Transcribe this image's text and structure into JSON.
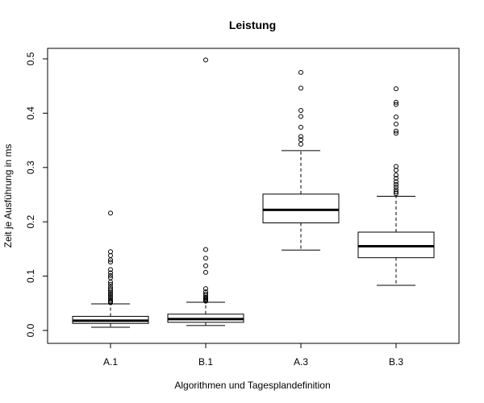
{
  "chart_data": {
    "type": "boxplot",
    "title": "Leistung",
    "xlabel": "Algorithmen und Tagesplandefinition",
    "ylabel": "Zeit je Ausführung in ms",
    "ylim": [
      -0.022,
      0.522
    ],
    "yticks": [
      "0.0",
      "0.1",
      "0.2",
      "0.3",
      "0.4",
      "0.5"
    ],
    "grid": false,
    "categories": [
      "A.1",
      "B.1",
      "A.3",
      "B.3"
    ],
    "boxes": [
      {
        "name": "A.1",
        "whisker_low": 0.006,
        "q1": 0.013,
        "median": 0.018,
        "q3": 0.026,
        "whisker_high": 0.049,
        "outliers": [
          0.216,
          0.145,
          0.138,
          0.13,
          0.126,
          0.112,
          0.106,
          0.101,
          0.097,
          0.089,
          0.085,
          0.08,
          0.076,
          0.073,
          0.07,
          0.067,
          0.064,
          0.061,
          0.058,
          0.055,
          0.053,
          0.051
        ]
      },
      {
        "name": "B.1",
        "whisker_low": 0.009,
        "q1": 0.015,
        "median": 0.021,
        "q3": 0.03,
        "whisker_high": 0.052,
        "outliers": [
          0.498,
          0.149,
          0.133,
          0.119,
          0.107,
          0.077,
          0.071,
          0.067,
          0.064,
          0.061,
          0.059,
          0.057,
          0.055,
          0.054
        ]
      },
      {
        "name": "A.3",
        "whisker_low": 0.148,
        "q1": 0.198,
        "median": 0.222,
        "q3": 0.251,
        "whisker_high": 0.331,
        "outliers": [
          0.475,
          0.446,
          0.405,
          0.394,
          0.374,
          0.357,
          0.351,
          0.343
        ]
      },
      {
        "name": "B.3",
        "whisker_low": 0.083,
        "q1": 0.134,
        "median": 0.155,
        "q3": 0.181,
        "whisker_high": 0.247,
        "outliers": [
          0.445,
          0.42,
          0.416,
          0.393,
          0.38,
          0.367,
          0.363,
          0.302,
          0.295,
          0.286,
          0.28,
          0.274,
          0.269,
          0.264,
          0.259,
          0.255,
          0.252
        ]
      }
    ]
  }
}
